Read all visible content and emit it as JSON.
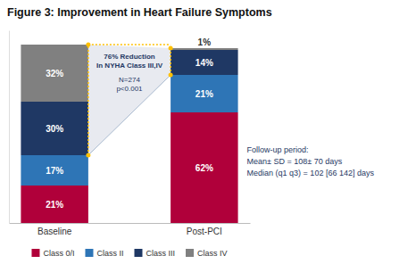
{
  "chart_data": {
    "type": "bar",
    "stacked": true,
    "title": "Figure 3: Improvement in Heart Failure Symptoms",
    "categories": [
      "Baseline",
      "Post-PCI"
    ],
    "series": [
      {
        "name": "Class 0/I",
        "color": "#B0003A",
        "values": [
          21,
          62
        ],
        "value_labels": [
          "21%",
          "62%"
        ]
      },
      {
        "name": "Class II",
        "color": "#2E75B6",
        "values": [
          17,
          21
        ],
        "value_labels": [
          "17%",
          "21%"
        ]
      },
      {
        "name": "Class III",
        "color": "#1F3864",
        "values": [
          30,
          14
        ],
        "value_labels": [
          "30%",
          "14%"
        ]
      },
      {
        "name": "Class IV",
        "color": "#808080",
        "values": [
          32,
          1
        ],
        "value_labels": [
          "32%",
          "1%"
        ]
      }
    ],
    "ylim": [
      0,
      108
    ],
    "data_labels": true,
    "tick_labels": "x",
    "legend": "bottom",
    "annotations": [
      "76% Reduction\nIn NYHA Class III,IV",
      "N=274\np<0.001",
      "Follow-up period:\nMean± SD = 108± 70 days\nMedian (q1 q3) = 102 [66 142] days"
    ]
  }
}
